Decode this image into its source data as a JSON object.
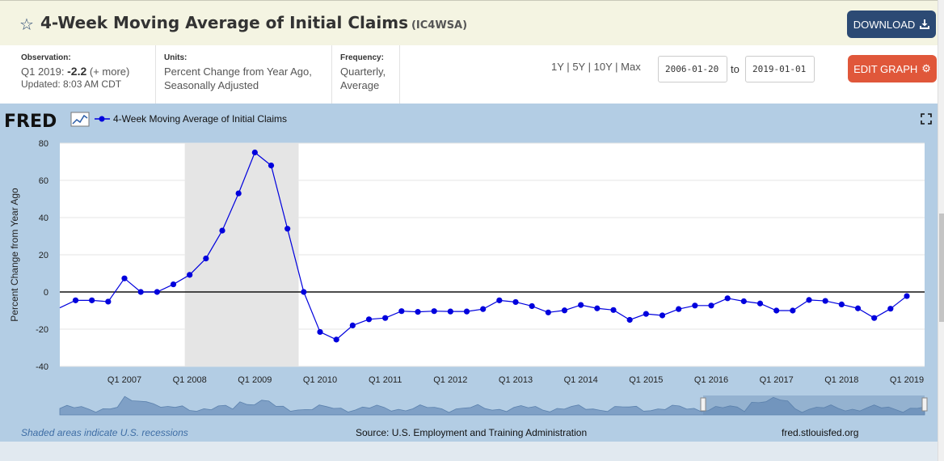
{
  "header": {
    "title": "4-Week Moving Average of Initial Claims",
    "series_id": "(IC4WSA)",
    "download_label": "DOWNLOAD"
  },
  "meta": {
    "observation_head": "Observation:",
    "observation_period": "Q1 2019:",
    "observation_value": "-2.2",
    "observation_more": "(+ more)",
    "updated": "Updated: 8:03 AM CDT",
    "units_head": "Units:",
    "units_line1": "Percent Change from Year Ago,",
    "units_line2": "Seasonally Adjusted",
    "frequency_head": "Frequency:",
    "frequency_line1": "Quarterly,",
    "frequency_line2": "Average"
  },
  "controls": {
    "range_1y": "1Y",
    "range_5y": "5Y",
    "range_10y": "10Y",
    "range_max": "Max",
    "range_sep": "|",
    "start_date": "2006-01-20",
    "to_label": "to",
    "end_date": "2019-01-01",
    "edit_label": "EDIT GRAPH"
  },
  "footer": {
    "recession_note": "Shaded areas indicate U.S. recessions",
    "source": "Source: U.S. Employment and Training Administration",
    "site": "fred.stlouisfed.org"
  },
  "colors": {
    "series": "#0000dd",
    "accent_dark": "#2c4a74",
    "accent_orange": "#e0573a",
    "chart_bg": "#b3cde4",
    "recession": "#e5e5e5"
  },
  "chart_data": {
    "type": "line",
    "logo": "FRED",
    "legend_label": "4-Week Moving Average of Initial Claims",
    "ylabel": "Percent Change from Year Ago",
    "xlabel": "",
    "ylim": [
      -40,
      80
    ],
    "yticks": [
      80,
      60,
      40,
      20,
      0,
      -20,
      -40
    ],
    "xticks": [
      "Q1 2007",
      "Q1 2008",
      "Q1 2009",
      "Q1 2010",
      "Q1 2011",
      "Q1 2012",
      "Q1 2013",
      "Q1 2014",
      "Q1 2015",
      "Q1 2016",
      "Q1 2017",
      "Q1 2018",
      "Q1 2019"
    ],
    "recession": {
      "start": "Q1 2008",
      "end": "Q2 2009"
    },
    "grid": true,
    "series": [
      {
        "name": "4-Week Moving Average of Initial Claims",
        "x": [
          "Q2 2006",
          "Q3 2006",
          "Q4 2006",
          "Q1 2007",
          "Q2 2007",
          "Q3 2007",
          "Q4 2007",
          "Q1 2008",
          "Q2 2008",
          "Q3 2008",
          "Q4 2008",
          "Q1 2009",
          "Q2 2009",
          "Q3 2009",
          "Q4 2009",
          "Q1 2010",
          "Q2 2010",
          "Q3 2010",
          "Q4 2010",
          "Q1 2011",
          "Q2 2011",
          "Q3 2011",
          "Q4 2011",
          "Q1 2012",
          "Q2 2012",
          "Q3 2012",
          "Q4 2012",
          "Q1 2013",
          "Q2 2013",
          "Q3 2013",
          "Q4 2013",
          "Q1 2014",
          "Q2 2014",
          "Q3 2014",
          "Q4 2014",
          "Q1 2015",
          "Q2 2015",
          "Q3 2015",
          "Q4 2015",
          "Q1 2016",
          "Q2 2016",
          "Q3 2016",
          "Q4 2016",
          "Q1 2017",
          "Q2 2017",
          "Q3 2017",
          "Q4 2017",
          "Q1 2018",
          "Q2 2018",
          "Q3 2018",
          "Q4 2018",
          "Q1 2019"
        ],
        "values": [
          -4.5,
          -4.5,
          -5.2,
          7.3,
          0,
          0,
          4.1,
          9.2,
          18,
          33,
          53,
          75,
          68,
          34,
          0,
          -21.5,
          -25.6,
          -18,
          -14.7,
          -14,
          -10.3,
          -10.7,
          -10.3,
          -10.5,
          -10.5,
          -9.2,
          -4.5,
          -5.4,
          -7.6,
          -11,
          -9.9,
          -7,
          -8.8,
          -9.7,
          -15,
          -11.8,
          -12.6,
          -9.2,
          -7.3,
          -7.3,
          -3.4,
          -5,
          -6.2,
          -10,
          -10,
          -4.3,
          -4.8,
          -6.7,
          -8.8,
          -14,
          -9,
          -2.2
        ]
      }
    ]
  }
}
